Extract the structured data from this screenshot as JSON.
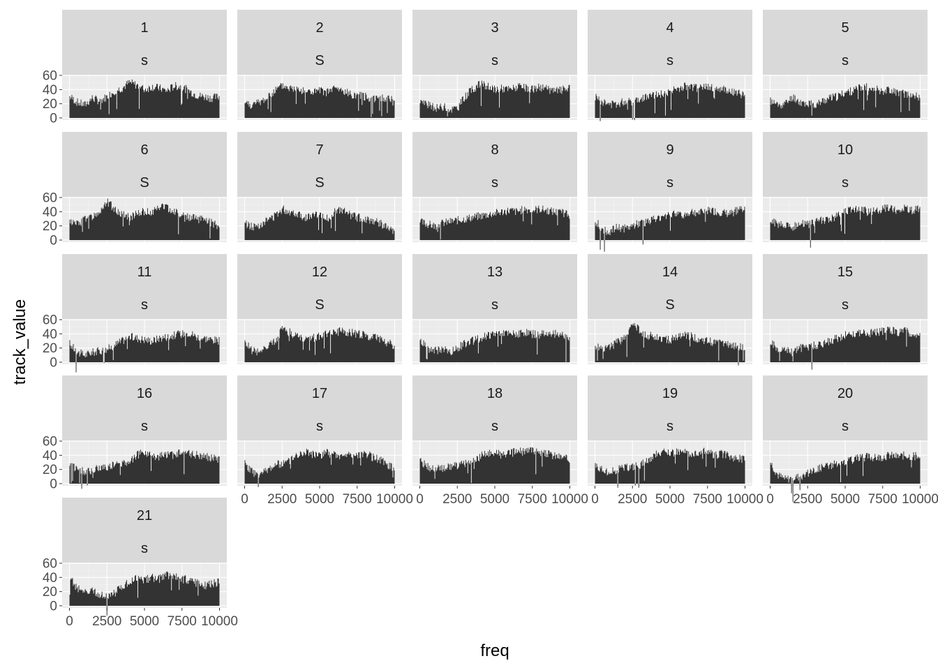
{
  "chart_data": {
    "type": "area",
    "geom": "col",
    "facet": "wrap",
    "ncol": 5,
    "xlabel": "freq",
    "ylabel": "track_value",
    "xlim": [
      0,
      10000
    ],
    "ylim": [
      -3,
      61
    ],
    "xticks": [
      0,
      2500,
      5000,
      7500,
      10000
    ],
    "xtick_labels": [
      "0",
      "2500",
      "5000",
      "7500",
      "10000"
    ],
    "yticks": [
      0,
      20,
      40,
      60
    ],
    "ytick_labels": [
      "0",
      "20",
      "40",
      "60"
    ],
    "x_sample": [
      0,
      500,
      1000,
      1500,
      2000,
      2500,
      3000,
      3500,
      4000,
      4500,
      5000,
      5500,
      6000,
      6500,
      7000,
      7500,
      8000,
      8500,
      9000,
      9500,
      10000
    ],
    "colors": {
      "bar": "#333333",
      "panel_bg": "#ebebeb",
      "strip_bg": "#d9d9d9",
      "grid_major": "#ffffff",
      "grid_minor": "#f2f2f2",
      "tick": "#333333"
    },
    "panels": [
      {
        "id": "1",
        "label": "s",
        "values": [
          30,
          22,
          18,
          28,
          24,
          30,
          38,
          42,
          50,
          46,
          40,
          44,
          42,
          38,
          45,
          44,
          38,
          32,
          30,
          28,
          30
        ]
      },
      {
        "id": "2",
        "label": "S",
        "values": [
          22,
          18,
          22,
          28,
          38,
          45,
          42,
          40,
          38,
          36,
          38,
          36,
          42,
          38,
          34,
          32,
          30,
          28,
          28,
          26,
          28
        ]
      },
      {
        "id": "3",
        "label": "s",
        "values": [
          24,
          18,
          14,
          16,
          12,
          14,
          30,
          40,
          48,
          44,
          40,
          42,
          40,
          44,
          42,
          40,
          44,
          40,
          38,
          40,
          42
        ]
      },
      {
        "id": "4",
        "label": "s",
        "values": [
          30,
          22,
          18,
          20,
          24,
          22,
          28,
          30,
          32,
          34,
          38,
          40,
          44,
          42,
          42,
          44,
          42,
          40,
          38,
          36,
          30
        ]
      },
      {
        "id": "5",
        "label": "s",
        "values": [
          24,
          18,
          20,
          30,
          22,
          20,
          18,
          24,
          28,
          30,
          36,
          38,
          42,
          44,
          42,
          38,
          40,
          36,
          34,
          32,
          30
        ]
      },
      {
        "id": "6",
        "label": "S",
        "values": [
          26,
          22,
          30,
          32,
          40,
          54,
          44,
          36,
          32,
          38,
          40,
          38,
          48,
          46,
          40,
          36,
          32,
          30,
          28,
          24,
          20
        ]
      },
      {
        "id": "7",
        "label": "S",
        "values": [
          24,
          18,
          22,
          28,
          34,
          44,
          40,
          38,
          32,
          34,
          36,
          30,
          40,
          42,
          36,
          32,
          30,
          28,
          24,
          18,
          10
        ]
      },
      {
        "id": "8",
        "label": "s",
        "values": [
          26,
          22,
          20,
          24,
          26,
          28,
          30,
          32,
          34,
          36,
          38,
          40,
          42,
          40,
          44,
          42,
          44,
          42,
          40,
          38,
          36
        ]
      },
      {
        "id": "9",
        "label": "s",
        "values": [
          28,
          14,
          12,
          18,
          16,
          20,
          24,
          26,
          30,
          34,
          36,
          38,
          36,
          40,
          38,
          42,
          40,
          38,
          36,
          42,
          46
        ]
      },
      {
        "id": "10",
        "label": "s",
        "values": [
          30,
          20,
          22,
          18,
          24,
          22,
          26,
          28,
          30,
          34,
          40,
          42,
          44,
          40,
          42,
          44,
          46,
          42,
          44,
          42,
          44
        ]
      },
      {
        "id": "11",
        "label": "s",
        "values": [
          26,
          14,
          10,
          14,
          16,
          18,
          24,
          30,
          36,
          34,
          32,
          30,
          34,
          36,
          38,
          40,
          42,
          36,
          34,
          32,
          30
        ]
      },
      {
        "id": "12",
        "label": "S",
        "values": [
          28,
          16,
          14,
          22,
          30,
          46,
          42,
          36,
          32,
          34,
          36,
          40,
          42,
          44,
          42,
          40,
          38,
          36,
          32,
          28,
          24
        ]
      },
      {
        "id": "13",
        "label": "s",
        "values": [
          30,
          20,
          16,
          18,
          14,
          20,
          26,
          30,
          34,
          38,
          40,
          42,
          38,
          40,
          42,
          40,
          38,
          42,
          40,
          38,
          32
        ]
      },
      {
        "id": "14",
        "label": "S",
        "values": [
          24,
          18,
          22,
          28,
          34,
          54,
          44,
          38,
          36,
          34,
          32,
          34,
          38,
          36,
          32,
          30,
          28,
          26,
          24,
          22,
          20
        ]
      },
      {
        "id": "15",
        "label": "s",
        "values": [
          28,
          18,
          16,
          18,
          20,
          22,
          24,
          26,
          30,
          34,
          38,
          40,
          42,
          40,
          42,
          44,
          46,
          42,
          44,
          40,
          36
        ]
      },
      {
        "id": "16",
        "label": "s",
        "values": [
          30,
          20,
          16,
          18,
          22,
          24,
          26,
          28,
          32,
          40,
          44,
          40,
          38,
          42,
          40,
          44,
          42,
          40,
          38,
          36,
          34
        ]
      },
      {
        "id": "17",
        "label": "s",
        "values": [
          28,
          16,
          12,
          20,
          26,
          28,
          32,
          40,
          46,
          42,
          40,
          44,
          40,
          38,
          42,
          40,
          44,
          38,
          34,
          28,
          20
        ]
      },
      {
        "id": "18",
        "label": "s",
        "values": [
          32,
          24,
          20,
          22,
          24,
          26,
          28,
          32,
          38,
          42,
          44,
          40,
          42,
          46,
          44,
          48,
          44,
          42,
          40,
          38,
          34
        ]
      },
      {
        "id": "19",
        "label": "s",
        "values": [
          28,
          18,
          16,
          20,
          22,
          24,
          26,
          32,
          40,
          44,
          42,
          46,
          44,
          42,
          46,
          44,
          40,
          42,
          38,
          36,
          34
        ]
      },
      {
        "id": "20",
        "label": "s",
        "values": [
          30,
          12,
          6,
          8,
          10,
          14,
          20,
          24,
          26,
          28,
          32,
          34,
          36,
          38,
          36,
          38,
          40,
          38,
          40,
          38,
          40
        ]
      },
      {
        "id": "21",
        "label": "s",
        "values": [
          40,
          24,
          18,
          20,
          16,
          14,
          18,
          26,
          34,
          38,
          36,
          40,
          38,
          44,
          42,
          38,
          36,
          32,
          28,
          30,
          34
        ]
      }
    ]
  }
}
